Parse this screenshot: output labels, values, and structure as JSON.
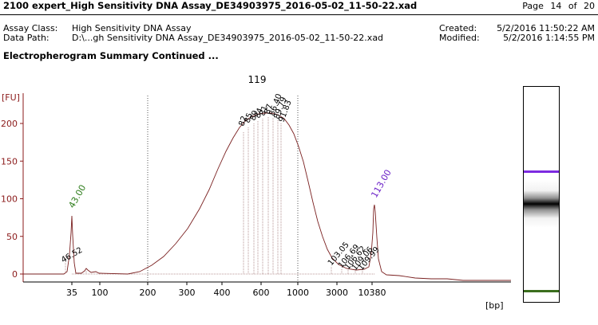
{
  "header": {
    "title": "2100 expert_High Sensitivity DNA Assay_DE34903975_2016-05-02_11-50-22.xad",
    "page_word": "Page",
    "page_num": "14",
    "of_word": "of",
    "page_total": "20"
  },
  "meta": {
    "assay_class_label": "Assay Class:",
    "assay_class_value": "High Sensitivity DNA Assay",
    "data_path_label": "Data Path:",
    "data_path_value": "D:\\...gh Sensitivity DNA Assay_DE34903975_2016-05-02_11-50-22.xad",
    "created_label": "Created:",
    "created_value": "5/2/2016 11:50:22 AM",
    "modified_label": "Modified:",
    "modified_value": "5/2/2016 1:14:55 PM"
  },
  "section_title": "Electropherogram Summary Continued ...",
  "chart_data": {
    "type": "line",
    "sample_label": "119",
    "ylabel": "[FU]",
    "xlabel": "[bp]",
    "ylim": [
      0,
      230
    ],
    "yticks": [
      0,
      50,
      100,
      150,
      200
    ],
    "xticks": [
      "35",
      "100",
      "200",
      "300",
      "400",
      "600",
      "1000",
      "3000",
      "10380"
    ],
    "grid": false,
    "markers": [
      {
        "label": "43.00",
        "color": "#2e7d1b"
      },
      {
        "label": "113.00",
        "color": "#6a1fc7"
      }
    ],
    "peak_labels": [
      "46.52",
      "82",
      "85",
      "89",
      "84",
      "81",
      "87",
      "86.40",
      "89.79",
      "91.83",
      "103.05",
      "106.69",
      "106.62",
      "109.06",
      "109.99"
    ],
    "colors": {
      "trace": "#7a2020",
      "axis": "#8b1a1a",
      "lower_marker": "#3b6e1e",
      "upper_marker": "#7d2be0"
    }
  },
  "gel": {
    "upper_band_color": "#7d2be0",
    "lower_band_color": "#3b6e1e"
  }
}
